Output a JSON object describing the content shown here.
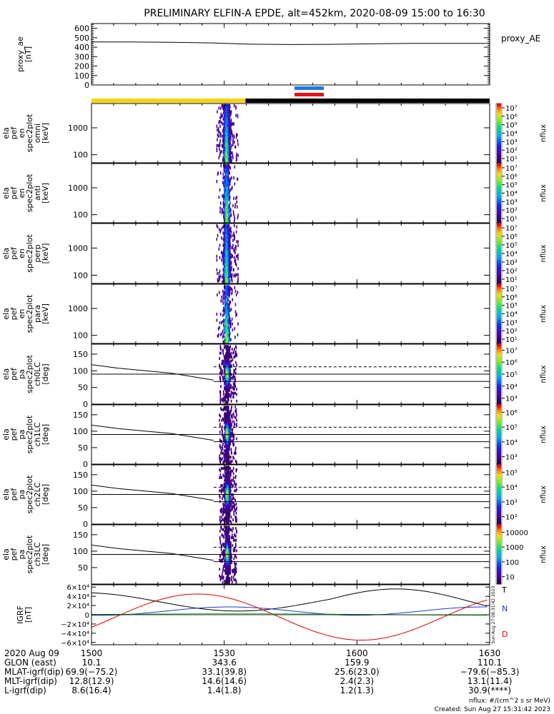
{
  "title": "PRELIMINARY ELFIN-A EPDE, alt=452km, 2020-08-09 15:00 to 16:30",
  "colors": {
    "sunlight_bar": "#f5d311",
    "eclipse_bar": "#000000",
    "science_zone_blue": "#1f77e4",
    "science_zone_red": "#e81010",
    "field_x": "#000000",
    "field_y": "#1a3cc8",
    "field_z": "#dd0000",
    "field_total": "#1a9a1a"
  },
  "chart_data": [
    {
      "type": "line",
      "panel": "proxy_ae",
      "ylabel": "proxy_ae\n[nT]",
      "legend": "proxy_AE",
      "ylim": [
        0,
        650
      ],
      "yticks": [
        "0",
        "100",
        "200",
        "300",
        "400",
        "500",
        "600"
      ],
      "x": [
        15.0,
        15.15,
        15.3,
        15.45,
        15.6,
        15.75,
        15.9,
        16.05,
        16.2,
        16.35,
        16.5
      ],
      "series": [
        {
          "name": "proxy_AE",
          "values": [
            455,
            455,
            452,
            445,
            432,
            428,
            430,
            436,
            440,
            440,
            440
          ]
        }
      ]
    },
    {
      "type": "heatmap",
      "panel": "energy_omni",
      "ylabel": "ela\npef\nen\nspec2plot\nomni\n[keV]",
      "yscale": "log",
      "yticks": [
        "100",
        "1000"
      ],
      "colorbar": {
        "label": "nflux",
        "ticks": [
          "10¹",
          "10²",
          "10³",
          "10⁴",
          "10⁵",
          "10⁶",
          "10⁷"
        ]
      }
    },
    {
      "type": "heatmap",
      "panel": "energy_anti",
      "ylabel": "ela\npef\nen\nspec2plot\nanti\n[keV]",
      "yscale": "log",
      "yticks": [
        "100",
        "1000"
      ],
      "colorbar": {
        "label": "nflux",
        "ticks": [
          "10¹",
          "10²",
          "10³",
          "10⁴",
          "10⁵",
          "10⁶",
          "10⁷"
        ]
      }
    },
    {
      "type": "heatmap",
      "panel": "energy_perp",
      "ylabel": "ela\npef\nen\nspec2plot\nperp\n[keV]",
      "yscale": "log",
      "yticks": [
        "100",
        "1000"
      ],
      "colorbar": {
        "label": "nflux",
        "ticks": [
          "10¹",
          "10²",
          "10³",
          "10⁴",
          "10⁵",
          "10⁶",
          "10⁷"
        ]
      }
    },
    {
      "type": "heatmap",
      "panel": "energy_para",
      "ylabel": "ela\npef\nen\nspec2plot\npara\n[keV]",
      "yscale": "log",
      "yticks": [
        "100",
        "1000"
      ],
      "colorbar": {
        "label": "nflux",
        "ticks": [
          "10¹",
          "10²",
          "10³",
          "10⁴",
          "10⁵",
          "10⁶",
          "10⁷"
        ]
      }
    },
    {
      "type": "heatmap",
      "panel": "pa_ch0",
      "ylabel": "ela\npef\npa\nspec2plot\nch0LC\n[deg]",
      "ylim": [
        0,
        180
      ],
      "yticks": [
        "0",
        "50",
        "100",
        "150"
      ],
      "colorbar": {
        "label": "nflux",
        "ticks": [
          "10³",
          "10⁴",
          "10⁵",
          "10⁶",
          "10⁷"
        ]
      }
    },
    {
      "type": "heatmap",
      "panel": "pa_ch1",
      "ylabel": "ela\npef\npa\nspec2plot\nch1LC\n[deg]",
      "ylim": [
        0,
        180
      ],
      "yticks": [
        "0",
        "50",
        "100",
        "150"
      ],
      "colorbar": {
        "label": "nflux",
        "ticks": [
          "10³",
          "10⁴",
          "10⁵",
          "10⁶"
        ]
      }
    },
    {
      "type": "heatmap",
      "panel": "pa_ch2",
      "ylabel": "ela\npef\npa\nspec2plot\nch2LC\n[deg]",
      "ylim": [
        0,
        180
      ],
      "yticks": [
        "0",
        "50",
        "100",
        "150"
      ],
      "colorbar": {
        "label": "nflux",
        "ticks": [
          "10²",
          "10³",
          "10⁴",
          "10⁵"
        ]
      }
    },
    {
      "type": "heatmap",
      "panel": "pa_ch3",
      "ylabel": "ela\npef\npa\nspec2plot\nch3LC\n[deg]",
      "ylim": [
        0,
        180
      ],
      "yticks": [
        "50",
        "100",
        "150"
      ],
      "colorbar": {
        "label": "nflux",
        "ticks": [
          "10",
          "100",
          "1000",
          "10000"
        ]
      }
    },
    {
      "type": "line",
      "panel": "igrf",
      "ylabel": "IGRF\n[nT]",
      "ylim": [
        -65000,
        65000
      ],
      "yticks": [
        "−6×10⁴",
        "−4×10⁴",
        "−2×10⁴",
        "0",
        "2×10⁴",
        "4×10⁴",
        "6×10⁴"
      ],
      "legend": [
        "T",
        "N",
        "D"
      ]
    }
  ],
  "xaxis": {
    "ticks": [
      "1500",
      "1530",
      "1600",
      "1630"
    ],
    "rows": [
      {
        "label": "2020 Aug 09",
        "values": [
          "",
          "",
          "",
          ""
        ]
      },
      {
        "label": "GLON (east)",
        "values": [
          "10.1",
          "343.6",
          "159.9",
          "110.1"
        ]
      },
      {
        "label": "MLAT-igrf(dip)",
        "values": [
          "69.9(−75.2)",
          "33.1(39.8)",
          "25.6(23.0)",
          "−79.6(−85.3)"
        ]
      },
      {
        "label": "MLT-igrf(dip)",
        "values": [
          "12.8(12.9)",
          "14.6(14.6)",
          "2.4(2.3)",
          "13.1(11.4)"
        ]
      },
      {
        "label": "L-igrf(dip)",
        "values": [
          "8.6(16.4)",
          "1.4(1.8)",
          "1.2(1.3)",
          "30.9(****)"
        ]
      }
    ]
  },
  "footer": {
    "units": "nflux: #/(cm^2 s sr MeV)",
    "created": "Created: Sun Aug 27 15:31:42 2023",
    "vertical_stamp": "Sun Aug 27 08:31:42 2023"
  }
}
